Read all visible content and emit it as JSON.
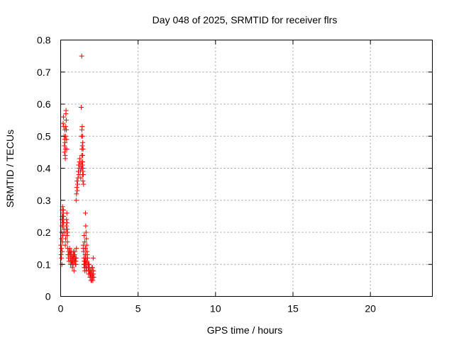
{
  "chart_data": {
    "type": "scatter",
    "title": "Day 048 of 2025, SRMTID for receiver flrs",
    "xlabel": "GPS time / hours",
    "ylabel": "SRMTID / TECUs",
    "xlim": [
      0,
      24
    ],
    "ylim": [
      0,
      0.8
    ],
    "xticks": [
      0,
      5,
      10,
      15,
      20
    ],
    "yticks": [
      0,
      0.1,
      0.2,
      0.3,
      0.4,
      0.5,
      0.6,
      0.7,
      0.8
    ],
    "xtick_labels": [
      "0",
      "5",
      "10",
      "15",
      "20"
    ],
    "ytick_labels": [
      "0",
      "0.1",
      "0.2",
      "0.3",
      "0.4",
      "0.5",
      "0.6",
      "0.7",
      "0.8"
    ],
    "grid": true,
    "marker": "plus",
    "color": "#ff0000",
    "series": [
      {
        "name": "SRMTID",
        "x": [
          0.02,
          0.03,
          0.05,
          0.06,
          0.07,
          0.08,
          0.09,
          0.1,
          0.11,
          0.12,
          0.13,
          0.14,
          0.15,
          0.16,
          0.17,
          0.18,
          0.19,
          0.2,
          0.21,
          0.22,
          0.05,
          0.08,
          0.1,
          0.12,
          0.14,
          0.16,
          0.18,
          0.2,
          0.22,
          0.24,
          0.25,
          0.26,
          0.27,
          0.28,
          0.29,
          0.3,
          0.31,
          0.32,
          0.33,
          0.34,
          0.35,
          0.36,
          0.37,
          0.38,
          0.39,
          0.4,
          0.41,
          0.42,
          0.45,
          0.3,
          0.32,
          0.34,
          0.36,
          0.38,
          0.4,
          0.42,
          0.44,
          0.46,
          0.48,
          0.5,
          0.52,
          0.54,
          0.56,
          0.58,
          0.6,
          0.62,
          0.64,
          0.66,
          0.68,
          0.7,
          0.72,
          0.74,
          0.76,
          0.78,
          0.8,
          0.82,
          0.84,
          0.86,
          0.88,
          0.9,
          0.92,
          0.94,
          0.96,
          0.98,
          1.0,
          0.62,
          0.66,
          0.7,
          0.74,
          0.78,
          0.82,
          0.86,
          0.9,
          0.94,
          0.98,
          1.02,
          1.0,
          1.02,
          1.04,
          1.06,
          1.08,
          1.1,
          1.12,
          1.14,
          1.16,
          1.18,
          1.2,
          1.22,
          1.24,
          1.26,
          1.28,
          1.3,
          1.32,
          1.34,
          1.36,
          1.38,
          1.4,
          1.42,
          1.44,
          1.35,
          1.37,
          1.39,
          1.41,
          1.43,
          1.45,
          1.33,
          1.36,
          1.38,
          1.4,
          1.42,
          1.44,
          1.46,
          1.48,
          1.5,
          1.52,
          1.54,
          1.56,
          1.58,
          1.6,
          1.62,
          1.64,
          1.66,
          1.68,
          1.7,
          1.72,
          1.74,
          1.76,
          1.78,
          1.8,
          1.82,
          1.84,
          1.86,
          1.88,
          1.9,
          1.92,
          1.94,
          1.96,
          1.98,
          2.0,
          2.02,
          2.04,
          2.06,
          2.08,
          2.1,
          2.12,
          2.14,
          1.6,
          1.62,
          1.64,
          1.66,
          1.68,
          1.7,
          1.52,
          1.55,
          1.58,
          1.6,
          1.5,
          1.52,
          1.54,
          1.56,
          1.58,
          1.6,
          1.62,
          1.64,
          1.8,
          1.85,
          1.9,
          1.95,
          2.0,
          2.05,
          2.1,
          1.4,
          1.42,
          1.44,
          1.46,
          1.48,
          1.46
        ],
        "y": [
          0.16,
          0.13,
          0.15,
          0.18,
          0.2,
          0.22,
          0.24,
          0.25,
          0.27,
          0.28,
          0.25,
          0.23,
          0.22,
          0.24,
          0.26,
          0.27,
          0.25,
          0.23,
          0.21,
          0.2,
          0.12,
          0.1,
          0.14,
          0.17,
          0.19,
          0.54,
          0.56,
          0.53,
          0.5,
          0.47,
          0.45,
          0.49,
          0.52,
          0.48,
          0.44,
          0.43,
          0.46,
          0.5,
          0.53,
          0.57,
          0.58,
          0.55,
          0.52,
          0.49,
          0.46,
          0.26,
          0.23,
          0.21,
          0.2,
          0.16,
          0.18,
          0.2,
          0.22,
          0.24,
          0.21,
          0.19,
          0.17,
          0.15,
          0.13,
          0.12,
          0.14,
          0.11,
          0.13,
          0.15,
          0.14,
          0.12,
          0.1,
          0.11,
          0.13,
          0.14,
          0.12,
          0.1,
          0.09,
          0.11,
          0.13,
          0.12,
          0.1,
          0.08,
          0.11,
          0.13,
          0.14,
          0.12,
          0.1,
          0.11,
          0.12,
          0.14,
          0.13,
          0.11,
          0.1,
          0.12,
          0.14,
          0.13,
          0.11,
          0.12,
          0.1,
          0.15,
          0.3,
          0.32,
          0.34,
          0.36,
          0.33,
          0.35,
          0.37,
          0.39,
          0.41,
          0.38,
          0.4,
          0.42,
          0.43,
          0.41,
          0.39,
          0.37,
          0.4,
          0.42,
          0.44,
          0.46,
          0.41,
          0.38,
          0.36,
          0.5,
          0.52,
          0.53,
          0.5,
          0.48,
          0.46,
          0.59,
          0.75,
          0.41,
          0.4,
          0.42,
          0.39,
          0.16,
          0.14,
          0.12,
          0.1,
          0.09,
          0.11,
          0.13,
          0.15,
          0.12,
          0.1,
          0.08,
          0.09,
          0.11,
          0.13,
          0.12,
          0.1,
          0.09,
          0.07,
          0.08,
          0.1,
          0.09,
          0.07,
          0.06,
          0.08,
          0.07,
          0.05,
          0.06,
          0.08,
          0.09,
          0.07,
          0.06,
          0.05,
          0.07,
          0.08,
          0.06,
          0.26,
          0.22,
          0.2,
          0.18,
          0.16,
          0.14,
          0.19,
          0.17,
          0.15,
          0.13,
          0.1,
          0.11,
          0.09,
          0.08,
          0.1,
          0.12,
          0.11,
          0.09,
          0.1,
          0.08,
          0.06,
          0.07,
          0.05,
          0.09,
          0.12,
          0.47,
          0.44,
          0.4,
          0.38,
          0.35,
          0.15
        ]
      }
    ]
  }
}
